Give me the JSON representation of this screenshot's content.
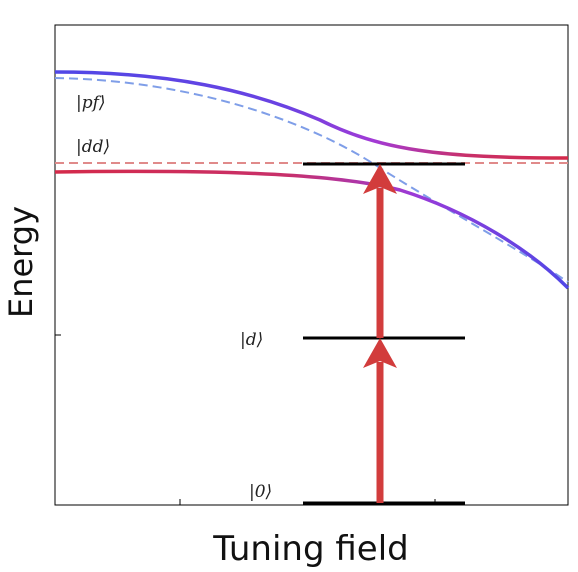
{
  "diagram": {
    "x_axis_label": "Tuning field",
    "y_axis_label": "Energy",
    "levels": [
      {
        "label": "|0⟩"
      },
      {
        "label": "|d⟩"
      },
      {
        "label": "|dd⟩"
      }
    ],
    "upper_curve_label": "|pf⟩",
    "colors": {
      "level_line": "#000000",
      "arrow": "#d23c3c",
      "dashed_dd": "#e08a8a",
      "dashed_pf": "#7f9ee8",
      "curve_blue": "#5047e6",
      "curve_purple": "#a23ad6",
      "curve_red": "#d42a4a"
    }
  }
}
